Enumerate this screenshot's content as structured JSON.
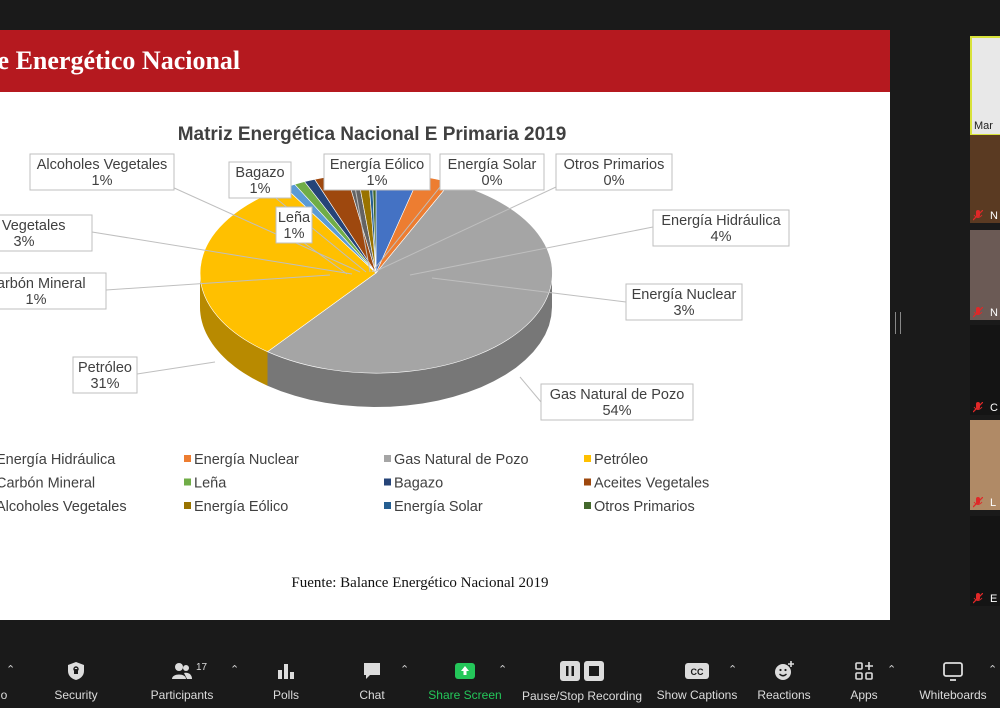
{
  "slide": {
    "title": "ce Energético Nacional",
    "source": "Fuente: Balance Energético Nacional 2019",
    "colors": {
      "header": "#b5191f"
    }
  },
  "chart_data": {
    "type": "pie",
    "title": "Matriz Energética Nacional E Primaria 2019",
    "three_d": true,
    "slices": [
      {
        "label": "Energía Hidráulica",
        "value": 4,
        "pct": "4%",
        "color": "#4472c4"
      },
      {
        "label": "Energía Nuclear",
        "value": 3,
        "pct": "3%",
        "color": "#ed7d31"
      },
      {
        "label": "Gas Natural de Pozo",
        "value": 54,
        "pct": "54%",
        "color": "#a5a5a5"
      },
      {
        "label": "Petróleo",
        "value": 31,
        "pct": "31%",
        "color": "#ffc000"
      },
      {
        "label": "Carbón Mineral",
        "value": 1,
        "pct": "1%",
        "color": "#5b9bd5"
      },
      {
        "label": "Leña",
        "value": 1,
        "pct": "1%",
        "color": "#70ad47"
      },
      {
        "label": "Bagazo",
        "value": 1,
        "pct": "1%",
        "color": "#264478"
      },
      {
        "label": "Aceites Vegetales",
        "value": 3,
        "pct": "3%",
        "color": "#9e480e"
      },
      {
        "label": "Alcoholes Vegetales",
        "value": 1,
        "pct": "1%",
        "color": "#636363"
      },
      {
        "label": "Energía Eólico",
        "value": 1,
        "pct": "1%",
        "color": "#997300"
      },
      {
        "label": "Energía Solar",
        "value": 0,
        "pct": "0%",
        "color": "#255e91"
      },
      {
        "label": "Otros Primarios",
        "value": 0,
        "pct": "0%",
        "color": "#43682b"
      }
    ],
    "data_labels": [
      {
        "name": "Alcoholes Vegetales",
        "pct": "1%"
      },
      {
        "name": "Bagazo",
        "pct": "1%"
      },
      {
        "name": "Energía Eólico",
        "pct": "1%"
      },
      {
        "name": "Energía Solar",
        "pct": "0%"
      },
      {
        "name": "Otros Primarios",
        "pct": "0%"
      },
      {
        "name": "es Vegetales",
        "pct": "3%"
      },
      {
        "name": "Leña",
        "pct": "1%"
      },
      {
        "name": "Energía Hidráulica",
        "pct": "4%"
      },
      {
        "name": "Carbón Mineral",
        "pct": "1%"
      },
      {
        "name": "Energía Nuclear",
        "pct": "3%"
      },
      {
        "name": "Petróleo",
        "pct": "31%"
      },
      {
        "name": "Gas Natural de Pozo",
        "pct": "54%"
      }
    ],
    "legend": [
      [
        "Energía Hidráulica",
        "Energía Nuclear",
        "Gas Natural de Pozo",
        "Petróleo"
      ],
      [
        "Carbón Mineral",
        "Leña",
        "Bagazo",
        "Aceites Vegetales"
      ],
      [
        "Alcoholes Vegetales",
        "Energía Eólico",
        "Energía Solar",
        "Otros Primarios"
      ]
    ],
    "legend_colors": [
      [
        "#4472c4",
        "#ed7d31",
        "#a5a5a5",
        "#ffc000"
      ],
      [
        "#5b9bd5",
        "#70ad47",
        "#264478",
        "#9e480e"
      ],
      [
        "#636363",
        "#997300",
        "#255e91",
        "#43682b"
      ]
    ],
    "legend_placement": "bottom"
  },
  "participants": [
    {
      "name": "Mar",
      "muted": false,
      "bg": "#e8e8e8"
    },
    {
      "name": "N",
      "muted": true,
      "bg": "#5a3a22"
    },
    {
      "name": "N",
      "muted": true,
      "bg": "#6b5a55"
    },
    {
      "name": "C",
      "muted": true,
      "bg": "#141414"
    },
    {
      "name": "L",
      "muted": true,
      "bg": "#b08a66"
    },
    {
      "name": "E",
      "muted": true,
      "bg": "#141414"
    }
  ],
  "toolbar": {
    "partial_label": "o",
    "security": "Security",
    "participants": "Participants",
    "participants_count": "17",
    "polls": "Polls",
    "chat": "Chat",
    "share_screen": "Share Screen",
    "recording": "Pause/Stop Recording",
    "captions": "Show Captions",
    "reactions": "Reactions",
    "apps": "Apps",
    "whiteboards": "Whiteboards",
    "accent": "#24c75a"
  }
}
